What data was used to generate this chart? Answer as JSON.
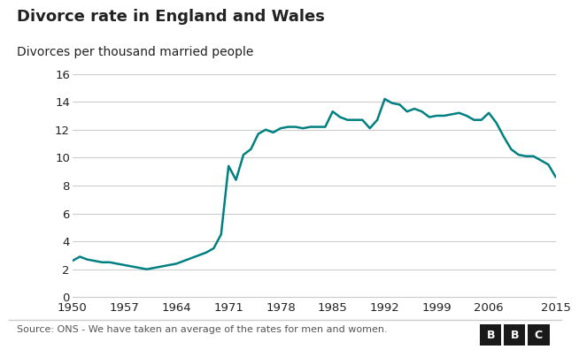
{
  "title": "Divorce rate in England and Wales",
  "subtitle": "Divorces per thousand married people",
  "source": "Source: ONS - We have taken an average of the rates for men and women.",
  "line_color": "#008080",
  "line_width": 1.8,
  "background_color": "#ffffff",
  "grid_color": "#cccccc",
  "text_color": "#222222",
  "source_color": "#555555",
  "ylim": [
    0,
    16
  ],
  "yticks": [
    0,
    2,
    4,
    6,
    8,
    10,
    12,
    14,
    16
  ],
  "xticks": [
    1950,
    1957,
    1964,
    1971,
    1978,
    1985,
    1992,
    1999,
    2006,
    2015
  ],
  "xlim": [
    1950,
    2015
  ],
  "years": [
    1950,
    1951,
    1952,
    1953,
    1954,
    1955,
    1956,
    1957,
    1958,
    1959,
    1960,
    1961,
    1962,
    1963,
    1964,
    1965,
    1966,
    1967,
    1968,
    1969,
    1970,
    1971,
    1972,
    1973,
    1974,
    1975,
    1976,
    1977,
    1978,
    1979,
    1980,
    1981,
    1982,
    1983,
    1984,
    1985,
    1986,
    1987,
    1988,
    1989,
    1990,
    1991,
    1992,
    1993,
    1994,
    1995,
    1996,
    1997,
    1998,
    1999,
    2000,
    2001,
    2002,
    2003,
    2004,
    2005,
    2006,
    2007,
    2008,
    2009,
    2010,
    2011,
    2012,
    2013,
    2014,
    2015
  ],
  "values": [
    2.6,
    2.9,
    2.7,
    2.6,
    2.5,
    2.5,
    2.4,
    2.3,
    2.2,
    2.1,
    2.0,
    2.1,
    2.2,
    2.3,
    2.4,
    2.6,
    2.8,
    3.0,
    3.2,
    3.5,
    4.5,
    9.4,
    8.4,
    10.2,
    10.6,
    11.7,
    12.0,
    11.8,
    12.1,
    12.2,
    12.2,
    12.1,
    12.2,
    12.2,
    12.2,
    13.3,
    12.9,
    12.7,
    12.7,
    12.7,
    12.1,
    12.7,
    14.2,
    13.9,
    13.8,
    13.3,
    13.5,
    13.3,
    12.9,
    13.0,
    13.0,
    13.1,
    13.2,
    13.0,
    12.7,
    12.7,
    13.2,
    12.5,
    11.5,
    10.6,
    10.2,
    10.1,
    10.1,
    9.8,
    9.5,
    8.6
  ]
}
